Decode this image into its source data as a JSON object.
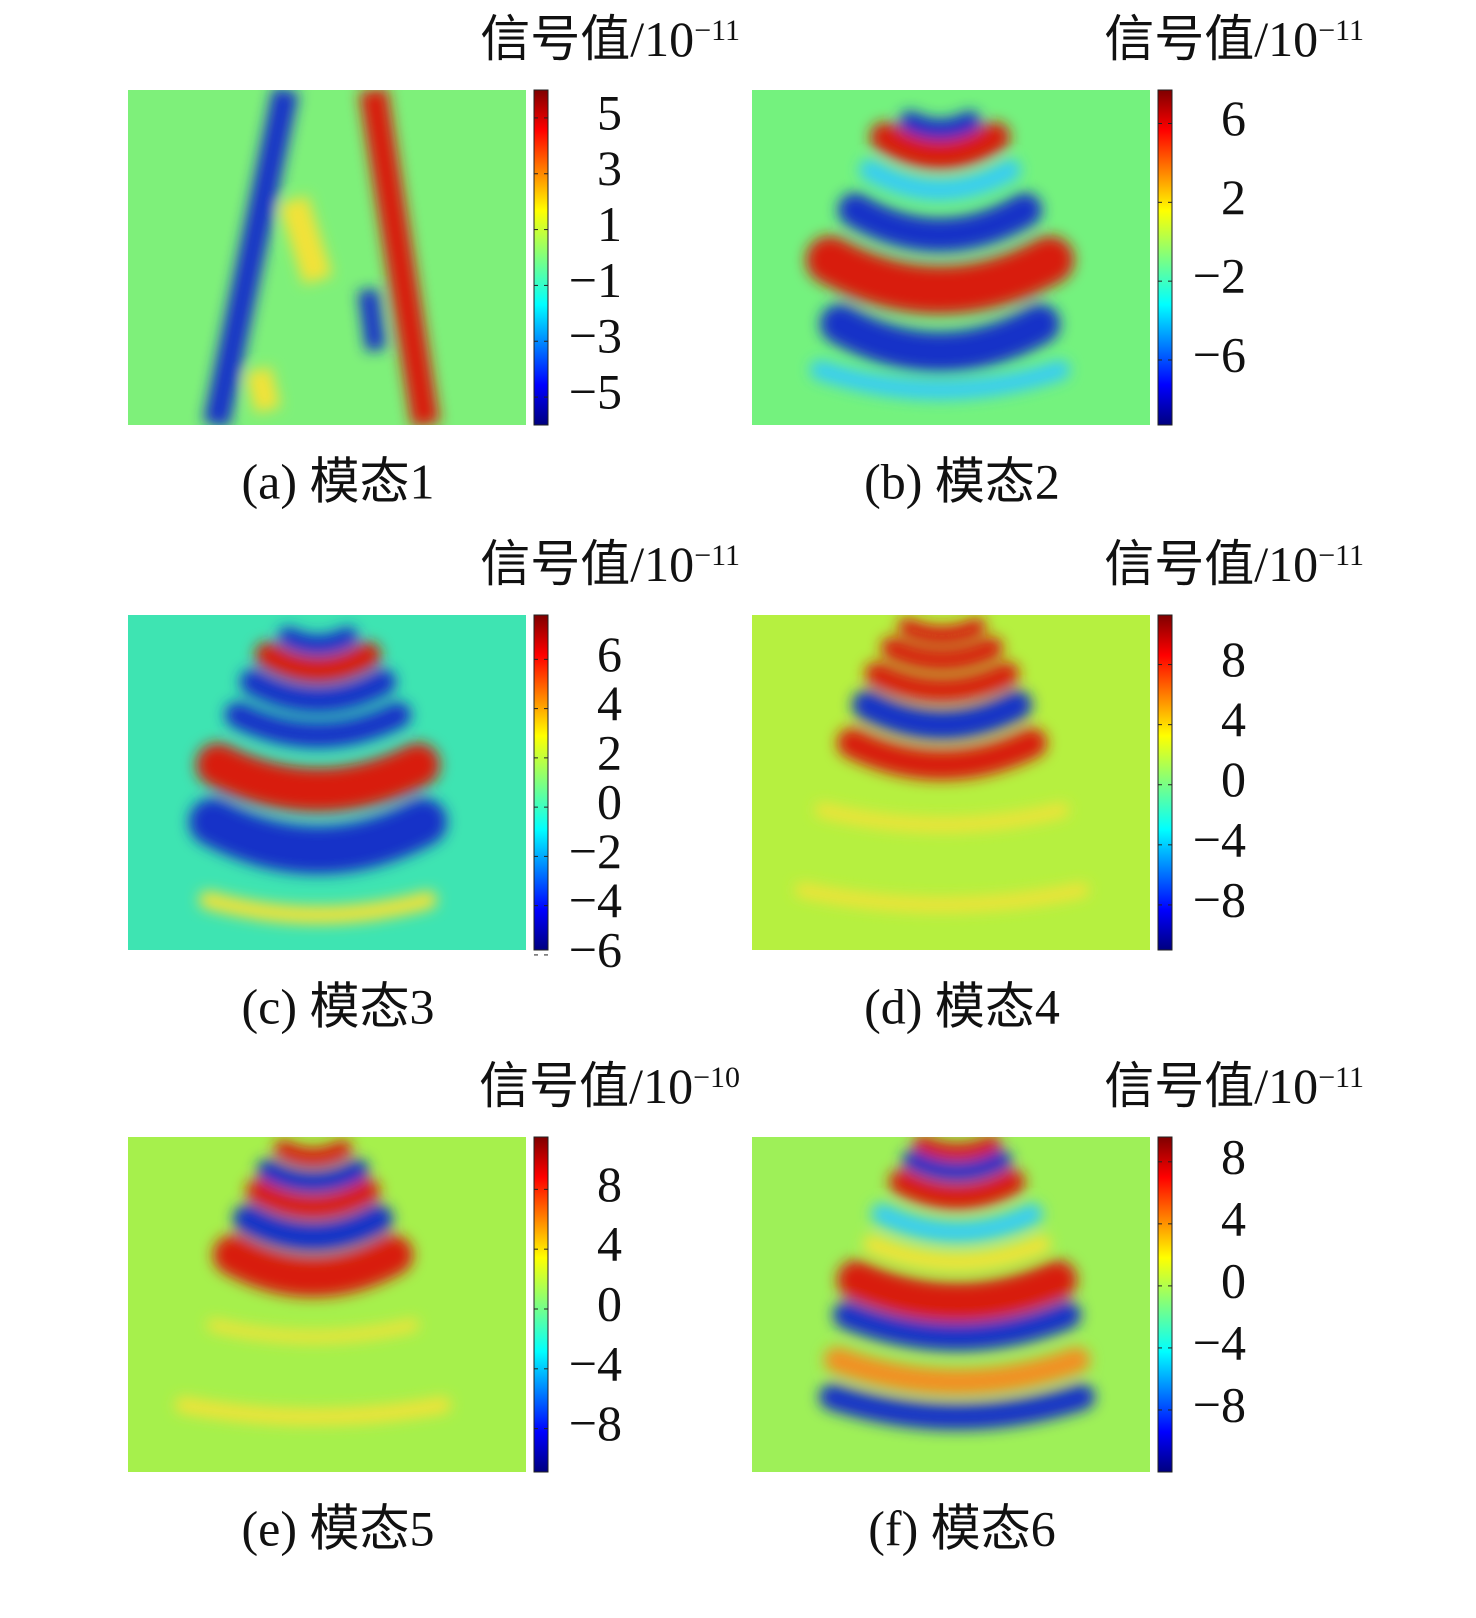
{
  "chart_data": [
    {
      "type": "heatmap",
      "title": "信号值/10",
      "title_exponent": "−11",
      "caption": "(a) 模态1",
      "colormap": "jet",
      "clim": [
        -6,
        6
      ],
      "cticks": [
        {
          "value": 5,
          "label": "5"
        },
        {
          "value": 3,
          "label": "3"
        },
        {
          "value": 1,
          "label": "1"
        },
        {
          "value": -1,
          "label": "−1"
        },
        {
          "value": -3,
          "label": "−3"
        },
        {
          "value": -5,
          "label": "−5"
        }
      ]
    },
    {
      "type": "heatmap",
      "title": "信号值/10",
      "title_exponent": "−11",
      "caption": "(b) 模态2",
      "colormap": "jet",
      "clim": [
        -9.3,
        7.7
      ],
      "cticks": [
        {
          "value": 6,
          "label": "6"
        },
        {
          "value": 2,
          "label": "2"
        },
        {
          "value": -2,
          "label": "−2"
        },
        {
          "value": -6,
          "label": "−6"
        }
      ]
    },
    {
      "type": "heatmap",
      "title": "信号值/10",
      "title_exponent": "−11",
      "caption": "(c) 模态3",
      "colormap": "jet",
      "clim": [
        -5.8,
        7.8
      ],
      "cticks": [
        {
          "value": 6,
          "label": "6"
        },
        {
          "value": 4,
          "label": "4"
        },
        {
          "value": 2,
          "label": "2"
        },
        {
          "value": 0,
          "label": "0"
        },
        {
          "value": -2,
          "label": "−2"
        },
        {
          "value": -4,
          "label": "−4"
        },
        {
          "value": -6,
          "label": "−6"
        }
      ]
    },
    {
      "type": "heatmap",
      "title": "信号值/10",
      "title_exponent": "−11",
      "caption": "(d) 模态4",
      "colormap": "jet",
      "clim": [
        -11,
        11.3
      ],
      "cticks": [
        {
          "value": 8,
          "label": "8"
        },
        {
          "value": 4,
          "label": "4"
        },
        {
          "value": 0,
          "label": "0"
        },
        {
          "value": -4,
          "label": "−4"
        },
        {
          "value": -8,
          "label": "−8"
        }
      ]
    },
    {
      "type": "heatmap",
      "title": "信号值/10",
      "title_exponent": "−10",
      "caption": "(e) 模态5",
      "colormap": "jet",
      "clim": [
        -10.9,
        11.5
      ],
      "cticks": [
        {
          "value": 8,
          "label": "8"
        },
        {
          "value": 4,
          "label": "4"
        },
        {
          "value": 0,
          "label": "0"
        },
        {
          "value": -4,
          "label": "−4"
        },
        {
          "value": -8,
          "label": "−8"
        }
      ]
    },
    {
      "type": "heatmap",
      "title": "信号值/10",
      "title_exponent": "−11",
      "caption": "(f) 模态6",
      "colormap": "jet",
      "clim": [
        -12,
        9.6
      ],
      "cticks": [
        {
          "value": 8,
          "label": "8"
        },
        {
          "value": 4,
          "label": "4"
        },
        {
          "value": 0,
          "label": "0"
        },
        {
          "value": -4,
          "label": "−4"
        },
        {
          "value": -8,
          "label": "−8"
        }
      ]
    }
  ]
}
